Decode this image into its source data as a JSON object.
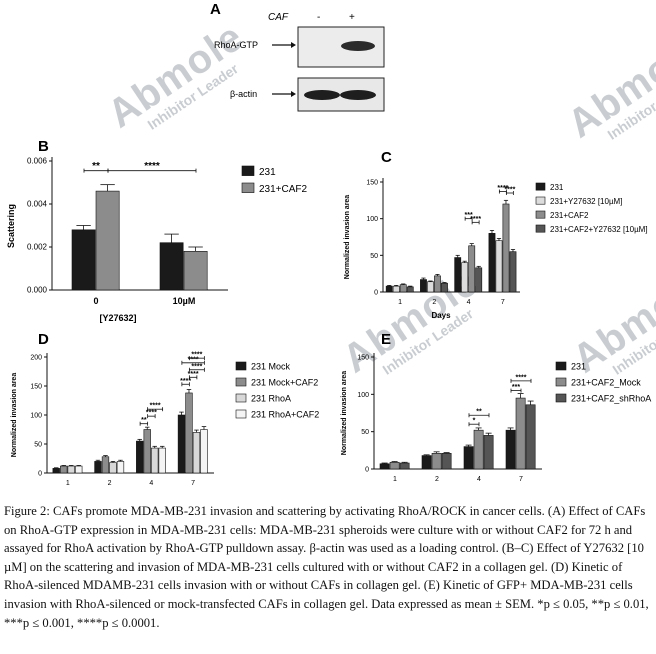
{
  "panel_a": {
    "label": "A",
    "caf_label": "CAF",
    "lane_labels": [
      "-",
      "+"
    ],
    "rows": [
      "RhoA-GTP",
      "β-actin"
    ]
  },
  "chart_data": [
    {
      "panel": "B",
      "type": "bar",
      "title": "",
      "ylabel": "Scattering",
      "xlabel": "[Y27632]",
      "categories": [
        "0",
        "10µM"
      ],
      "ylim": [
        0,
        0.006
      ],
      "yticks": [
        "0.000",
        "0.002",
        "0.004",
        "0.006"
      ],
      "series": [
        {
          "name": "231",
          "color": "#1a1a1a",
          "values": [
            0.0028,
            0.0022
          ],
          "errors": [
            0.0002,
            0.0004
          ]
        },
        {
          "name": "231+CAF2",
          "color": "#8c8c8c",
          "values": [
            0.0046,
            0.0018
          ],
          "errors": [
            0.0003,
            0.0002
          ]
        }
      ],
      "annotations": [
        "**",
        "****"
      ],
      "legend": "top-right"
    },
    {
      "panel": "C",
      "type": "bar",
      "title": "",
      "ylabel": "Normalized invasion area",
      "xlabel": "Days",
      "categories": [
        "1",
        "2",
        "4",
        "7"
      ],
      "ylim": [
        0,
        150
      ],
      "yticks": [
        "0",
        "50",
        "100",
        "150"
      ],
      "series": [
        {
          "name": "231",
          "color": "#1a1a1a",
          "values": [
            8,
            17,
            47,
            80
          ],
          "errors": [
            1,
            2,
            3,
            4
          ]
        },
        {
          "name": "231+Y27632 [10µM]",
          "color": "#dcdcdc",
          "values": [
            8,
            14,
            40,
            70
          ],
          "errors": [
            1,
            1,
            2,
            3
          ]
        },
        {
          "name": "231+CAF2",
          "color": "#8c8c8c",
          "values": [
            10,
            22,
            63,
            120
          ],
          "errors": [
            1,
            2,
            3,
            5
          ]
        },
        {
          "name": "231+CAF2+Y27632 [10µM]",
          "color": "#555555",
          "values": [
            7,
            12,
            33,
            55
          ],
          "errors": [
            1,
            1,
            2,
            3
          ]
        }
      ],
      "annotations": [
        "***",
        "****",
        "****",
        "****"
      ],
      "legend": "top-right"
    },
    {
      "panel": "D",
      "type": "bar",
      "title": "",
      "ylabel": "Normalized invasion area",
      "xlabel": "",
      "categories": [
        "1",
        "2",
        "4",
        "7"
      ],
      "ylim": [
        0,
        200
      ],
      "yticks": [
        "0",
        "50",
        "100",
        "150",
        "200"
      ],
      "series": [
        {
          "name": "231 Mock",
          "color": "#1a1a1a",
          "values": [
            8,
            20,
            55,
            100
          ],
          "errors": [
            1,
            2,
            3,
            5
          ]
        },
        {
          "name": "231 Mock+CAF2",
          "color": "#8c8c8c",
          "values": [
            12,
            28,
            75,
            138
          ],
          "errors": [
            1,
            2,
            4,
            6
          ]
        },
        {
          "name": "231 RhoA",
          "color": "#d8d8d8",
          "values": [
            12,
            18,
            43,
            70
          ],
          "errors": [
            1,
            2,
            3,
            4
          ]
        },
        {
          "name": "231 RhoA+CAF2",
          "color": "#f4f4f4",
          "values": [
            12,
            20,
            43,
            75
          ],
          "errors": [
            1,
            2,
            3,
            5
          ]
        }
      ],
      "annotations": [
        "**",
        "****",
        "****",
        "****",
        "****",
        "****",
        "****",
        "****"
      ],
      "legend": "top-right"
    },
    {
      "panel": "E",
      "type": "bar",
      "title": "",
      "ylabel": "Normalized invasion area",
      "xlabel": "",
      "categories": [
        "1",
        "2",
        "4",
        "7"
      ],
      "ylim": [
        0,
        150
      ],
      "yticks": [
        "0",
        "50",
        "100",
        "150"
      ],
      "series": [
        {
          "name": "231",
          "color": "#1a1a1a",
          "values": [
            7,
            18,
            30,
            52
          ],
          "errors": [
            1,
            1,
            2,
            3
          ]
        },
        {
          "name": "231+CAF2_Mock",
          "color": "#8c8c8c",
          "values": [
            9,
            21,
            52,
            95
          ],
          "errors": [
            1,
            2,
            3,
            6
          ]
        },
        {
          "name": "231+CAF2_shRhoA",
          "color": "#555555",
          "values": [
            8,
            21,
            45,
            86
          ],
          "errors": [
            1,
            1,
            3,
            5
          ]
        }
      ],
      "annotations": [
        "*",
        "**",
        "***",
        "****"
      ],
      "legend": "top-right"
    }
  ],
  "caption": "Figure 2: CAFs promote MDA-MB-231 invasion and scattering by activating RhoA/ROCK in cancer cells. (A) Effect of CAFs on RhoA-GTP expression in MDA-MB-231 cells: MDA-MB-231 spheroids were culture with or without CAF2 for 72 h and assayed for RhoA activation by RhoA-GTP pulldown assay. β-actin was used as a loading control. (B–C) Effect of Y27632 [10 µM] on the scattering and invasion of MDA-MB-231 cells cultured with or without CAF2 in a collagen gel. (D) Kinetic of RhoA-silenced MDAMB-231 cells invasion with or without CAFs in collagen gel. (E) Kinetic of GFP+ MDA-MB-231 cells invasion with RhoA-silenced or mock-transfected CAFs in collagen gel. Data expressed as mean ± SEM. *p ≤ 0.05, **p ≤ 0.01, ***p ≤ 0.001, ****p ≤ 0.0001.",
  "watermark": {
    "brand": "Abmole",
    "tagline": "Inhibitor Leader"
  }
}
